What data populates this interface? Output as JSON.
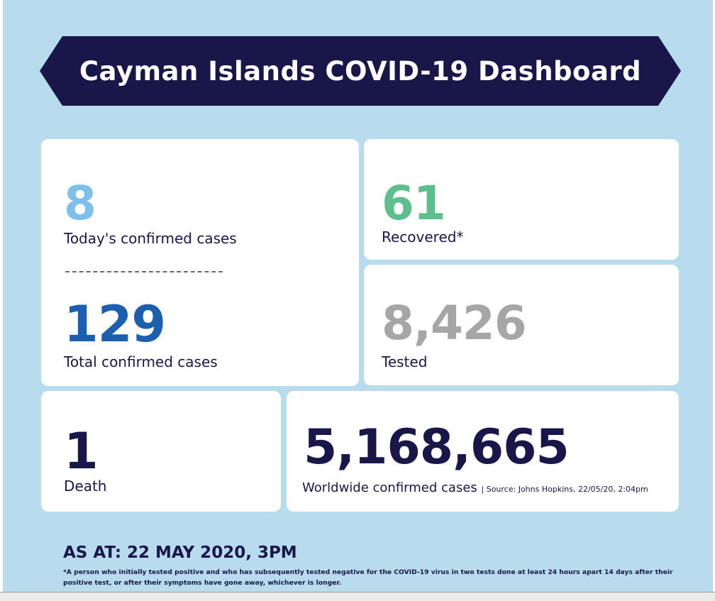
{
  "title": "Cayman Islands COVID-19 Dashboard",
  "stats": {
    "today": {
      "value": "8",
      "label": "Today's confirmed cases",
      "color": "#7fc0ea"
    },
    "total": {
      "value": "129",
      "label": "Total confirmed cases",
      "color": "#1c5fae"
    },
    "recovered": {
      "value": "61",
      "label": "Recovered*",
      "color": "#5dbf8d"
    },
    "tested": {
      "value": "8,426",
      "label": "Tested",
      "color": "#a6a6a6"
    },
    "death": {
      "value": "1",
      "label": "Death",
      "color": "#19164a"
    },
    "worldwide": {
      "value": "5,168,665",
      "label": "Worldwide confirmed cases",
      "source": "| Source: Johns Hopkins, 22/05/20, 2:04pm",
      "color": "#19164a"
    }
  },
  "as_at": "AS AT: 22 MAY 2020, 3PM",
  "footnote": "*A person who initially tested positive and who has subsequently tested negative for the COVID-19 virus in two tests done at least 24 hours apart 14 days after their positive test, or after their symptoms have gone away, whichever is longer.",
  "colors": {
    "background": "#b8dced",
    "navy": "#19164a",
    "card": "#ffffff"
  }
}
